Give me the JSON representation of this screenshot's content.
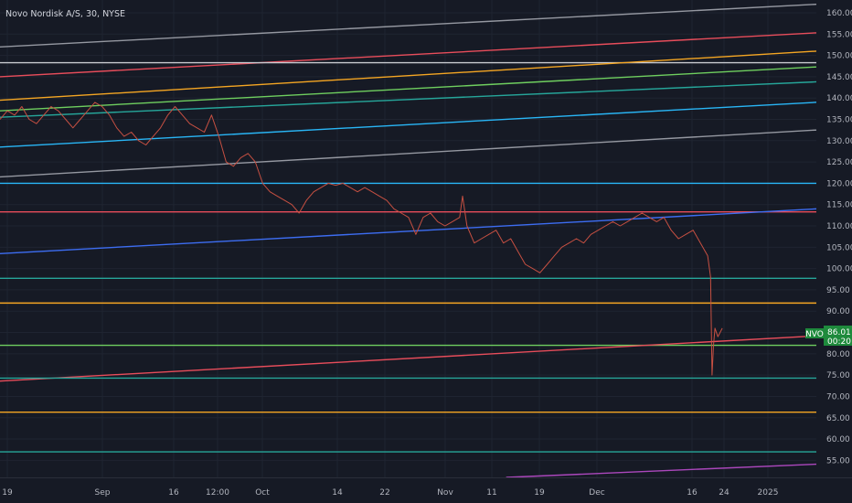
{
  "header": {
    "symbol_title": "Novo Nordisk A/S, 30, NYSE"
  },
  "price_tag": {
    "ticker": "NVO",
    "price": "86.01",
    "countdown": "00:20",
    "color": "#1e8a3c"
  },
  "chart_data": {
    "type": "line",
    "title": "Novo Nordisk A/S, 30, NYSE",
    "xlabel": "",
    "ylabel": "",
    "y_ticks": [
      "160.00",
      "155.00",
      "150.00",
      "145.00",
      "140.00",
      "135.00",
      "130.00",
      "125.00",
      "120.00",
      "115.00",
      "110.00",
      "105.00",
      "100.00",
      "95.00",
      "90.00",
      "85.00",
      "80.00",
      "75.00",
      "70.00",
      "65.00",
      "60.00",
      "55.00"
    ],
    "ylim": [
      51,
      163
    ],
    "x_ticks": [
      "19",
      "Sep",
      "16",
      "12:00",
      "Oct",
      "14",
      "22",
      "Nov",
      "11",
      "19",
      "Dec",
      "16",
      "24",
      "2025"
    ],
    "grid": true,
    "price_series": {
      "name": "NVO",
      "color": "#c75042",
      "points": [
        [
          0,
          135
        ],
        [
          0.5,
          137
        ],
        [
          1,
          136
        ],
        [
          1.5,
          138
        ],
        [
          2,
          135
        ],
        [
          2.5,
          134
        ],
        [
          3,
          136
        ],
        [
          3.5,
          138
        ],
        [
          4,
          137
        ],
        [
          4.5,
          135
        ],
        [
          5,
          133
        ],
        [
          5.5,
          135
        ],
        [
          6,
          137
        ],
        [
          6.5,
          139
        ],
        [
          7,
          138
        ],
        [
          7.5,
          136
        ],
        [
          8,
          133
        ],
        [
          8.5,
          131
        ],
        [
          9,
          132
        ],
        [
          9.5,
          130
        ],
        [
          10,
          129
        ],
        [
          10.5,
          131
        ],
        [
          11,
          133
        ],
        [
          11.5,
          136
        ],
        [
          12,
          138
        ],
        [
          12.5,
          136
        ],
        [
          13,
          134
        ],
        [
          13.5,
          133
        ],
        [
          14,
          132
        ],
        [
          14.5,
          136
        ],
        [
          15,
          131
        ],
        [
          15.5,
          125
        ],
        [
          16,
          124
        ],
        [
          16.5,
          126
        ],
        [
          17,
          127
        ],
        [
          17.5,
          125
        ],
        [
          18,
          120
        ],
        [
          18.5,
          118
        ],
        [
          19,
          117
        ],
        [
          19.5,
          116
        ],
        [
          20,
          115
        ],
        [
          20.5,
          113
        ],
        [
          21,
          116
        ],
        [
          21.5,
          118
        ],
        [
          22,
          119
        ],
        [
          22.5,
          120
        ],
        [
          23,
          119.5
        ],
        [
          23.5,
          120
        ],
        [
          24,
          119
        ],
        [
          24.5,
          118
        ],
        [
          25,
          119
        ],
        [
          25.5,
          118
        ],
        [
          26,
          117
        ],
        [
          26.5,
          116
        ],
        [
          27,
          114
        ],
        [
          27.5,
          113
        ],
        [
          28,
          112
        ],
        [
          28.5,
          108
        ],
        [
          29,
          112
        ],
        [
          29.5,
          113
        ],
        [
          30,
          111
        ],
        [
          30.5,
          110
        ],
        [
          31,
          111
        ],
        [
          31.5,
          112
        ],
        [
          31.7,
          117
        ],
        [
          32,
          110
        ],
        [
          32.5,
          106
        ],
        [
          33,
          107
        ],
        [
          33.5,
          108
        ],
        [
          34,
          109
        ],
        [
          34.5,
          106
        ],
        [
          35,
          107
        ],
        [
          35.5,
          104
        ],
        [
          36,
          101
        ],
        [
          36.5,
          100
        ],
        [
          37,
          99
        ],
        [
          37.5,
          101
        ],
        [
          38,
          103
        ],
        [
          38.5,
          105
        ],
        [
          39,
          106
        ],
        [
          39.5,
          107
        ],
        [
          40,
          106
        ],
        [
          40.5,
          108
        ],
        [
          41,
          109
        ],
        [
          41.5,
          110
        ],
        [
          42,
          111
        ],
        [
          42.5,
          110
        ],
        [
          43,
          111
        ],
        [
          43.5,
          112
        ],
        [
          44,
          113
        ],
        [
          44.5,
          112
        ],
        [
          45,
          111
        ],
        [
          45.5,
          112
        ],
        [
          46,
          109
        ],
        [
          46.5,
          107
        ],
        [
          47,
          108
        ],
        [
          47.5,
          109
        ],
        [
          48,
          106
        ],
        [
          48.5,
          103
        ],
        [
          48.7,
          98
        ],
        [
          48.8,
          75
        ],
        [
          48.9,
          82
        ],
        [
          49,
          86
        ],
        [
          49.2,
          84
        ],
        [
          49.5,
          86
        ]
      ]
    },
    "trend_lines": [
      {
        "color": "#9598a1",
        "y_start": 152,
        "y_end": 162
      },
      {
        "color": "#e84d5b",
        "y_start": 145,
        "y_end": 155.3
      },
      {
        "color": "#c9cbd1",
        "y_start": 148.3,
        "y_end": 148.3
      },
      {
        "color": "#f5a623",
        "y_start": 139.5,
        "y_end": 151
      },
      {
        "color": "#6fcf5f",
        "y_start": 137,
        "y_end": 147.3
      },
      {
        "color": "#26a69a",
        "y_start": 135.5,
        "y_end": 143.8
      },
      {
        "color": "#29b6f6",
        "y_start": 128.5,
        "y_end": 139
      },
      {
        "color": "#9598a1",
        "y_start": 121.5,
        "y_end": 132.5
      },
      {
        "color": "#29b6f6",
        "y_start": 120,
        "y_end": 120
      },
      {
        "color": "#e84d5b",
        "y_start": 113.3,
        "y_end": 113.3
      },
      {
        "color": "#3d6df2",
        "y_start": 103.5,
        "y_end": 114
      },
      {
        "color": "#26a69a",
        "y_start": 97.7,
        "y_end": 97.7
      },
      {
        "color": "#f5a623",
        "y_start": 91.9,
        "y_end": 91.9
      },
      {
        "color": "#6fcf5f",
        "y_start": 82,
        "y_end": 82
      },
      {
        "color": "#e84d5b",
        "y_start": 73.6,
        "y_end": 84.2
      },
      {
        "color": "#26a69a",
        "y_start": 74.3,
        "y_end": 74.3
      },
      {
        "color": "#f5a623",
        "y_start": 66.3,
        "y_end": 66.3
      },
      {
        "color": "#26a69a",
        "y_start": 57,
        "y_end": 57
      },
      {
        "color": "#ab47bc",
        "y_start": 51,
        "y_end": 54.1,
        "x_start_frac": 0.62
      }
    ]
  }
}
